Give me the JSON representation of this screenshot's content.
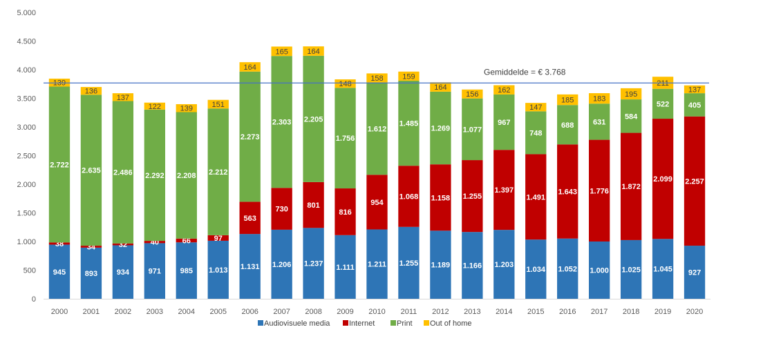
{
  "chart_data": {
    "type": "bar",
    "stacked": true,
    "title": "",
    "xlabel": "",
    "ylabel": "",
    "ylim": [
      0,
      5000
    ],
    "yticks": [
      0,
      500,
      1000,
      1500,
      2000,
      2500,
      3000,
      3500,
      4000,
      4500,
      5000
    ],
    "ytick_labels": [
      "0",
      "500",
      "1.000",
      "1.500",
      "2.000",
      "2.500",
      "3.000",
      "3.500",
      "4.000",
      "4.500",
      "5.000"
    ],
    "grid": false,
    "legend_position": "bottom",
    "categories": [
      "2000",
      "2001",
      "2002",
      "2003",
      "2004",
      "2005",
      "2006",
      "2007",
      "2008",
      "2009",
      "2010",
      "2011",
      "2012",
      "2013",
      "2014",
      "2015",
      "2016",
      "2017",
      "2018",
      "2019",
      "2020"
    ],
    "series": [
      {
        "name": "Audiovisuele media",
        "color": "#2e75b6",
        "values": [
          945,
          893,
          934,
          971,
          985,
          1013,
          1131,
          1206,
          1237,
          1111,
          1211,
          1255,
          1189,
          1166,
          1203,
          1034,
          1052,
          1000,
          1025,
          1045,
          927
        ]
      },
      {
        "name": "Internet",
        "color": "#c00000",
        "values": [
          38,
          34,
          32,
          40,
          66,
          97,
          563,
          730,
          801,
          816,
          954,
          1068,
          1158,
          1255,
          1397,
          1491,
          1643,
          1776,
          1872,
          2099,
          2257
        ]
      },
      {
        "name": "Print",
        "color": "#70ad47",
        "values": [
          2722,
          2635,
          2486,
          2292,
          2208,
          2212,
          2273,
          2303,
          2205,
          1756,
          1612,
          1485,
          1269,
          1077,
          967,
          748,
          688,
          631,
          584,
          522,
          405
        ]
      },
      {
        "name": "Out of home",
        "color": "#ffc000",
        "values": [
          139,
          136,
          137,
          122,
          139,
          151,
          164,
          165,
          164,
          148,
          158,
          159,
          164,
          156,
          162,
          147,
          185,
          183,
          195,
          211,
          137
        ]
      }
    ],
    "reference_line": {
      "value": 3768,
      "label": "Gemiddelde = € 3.768",
      "color": "#4472c4"
    }
  }
}
